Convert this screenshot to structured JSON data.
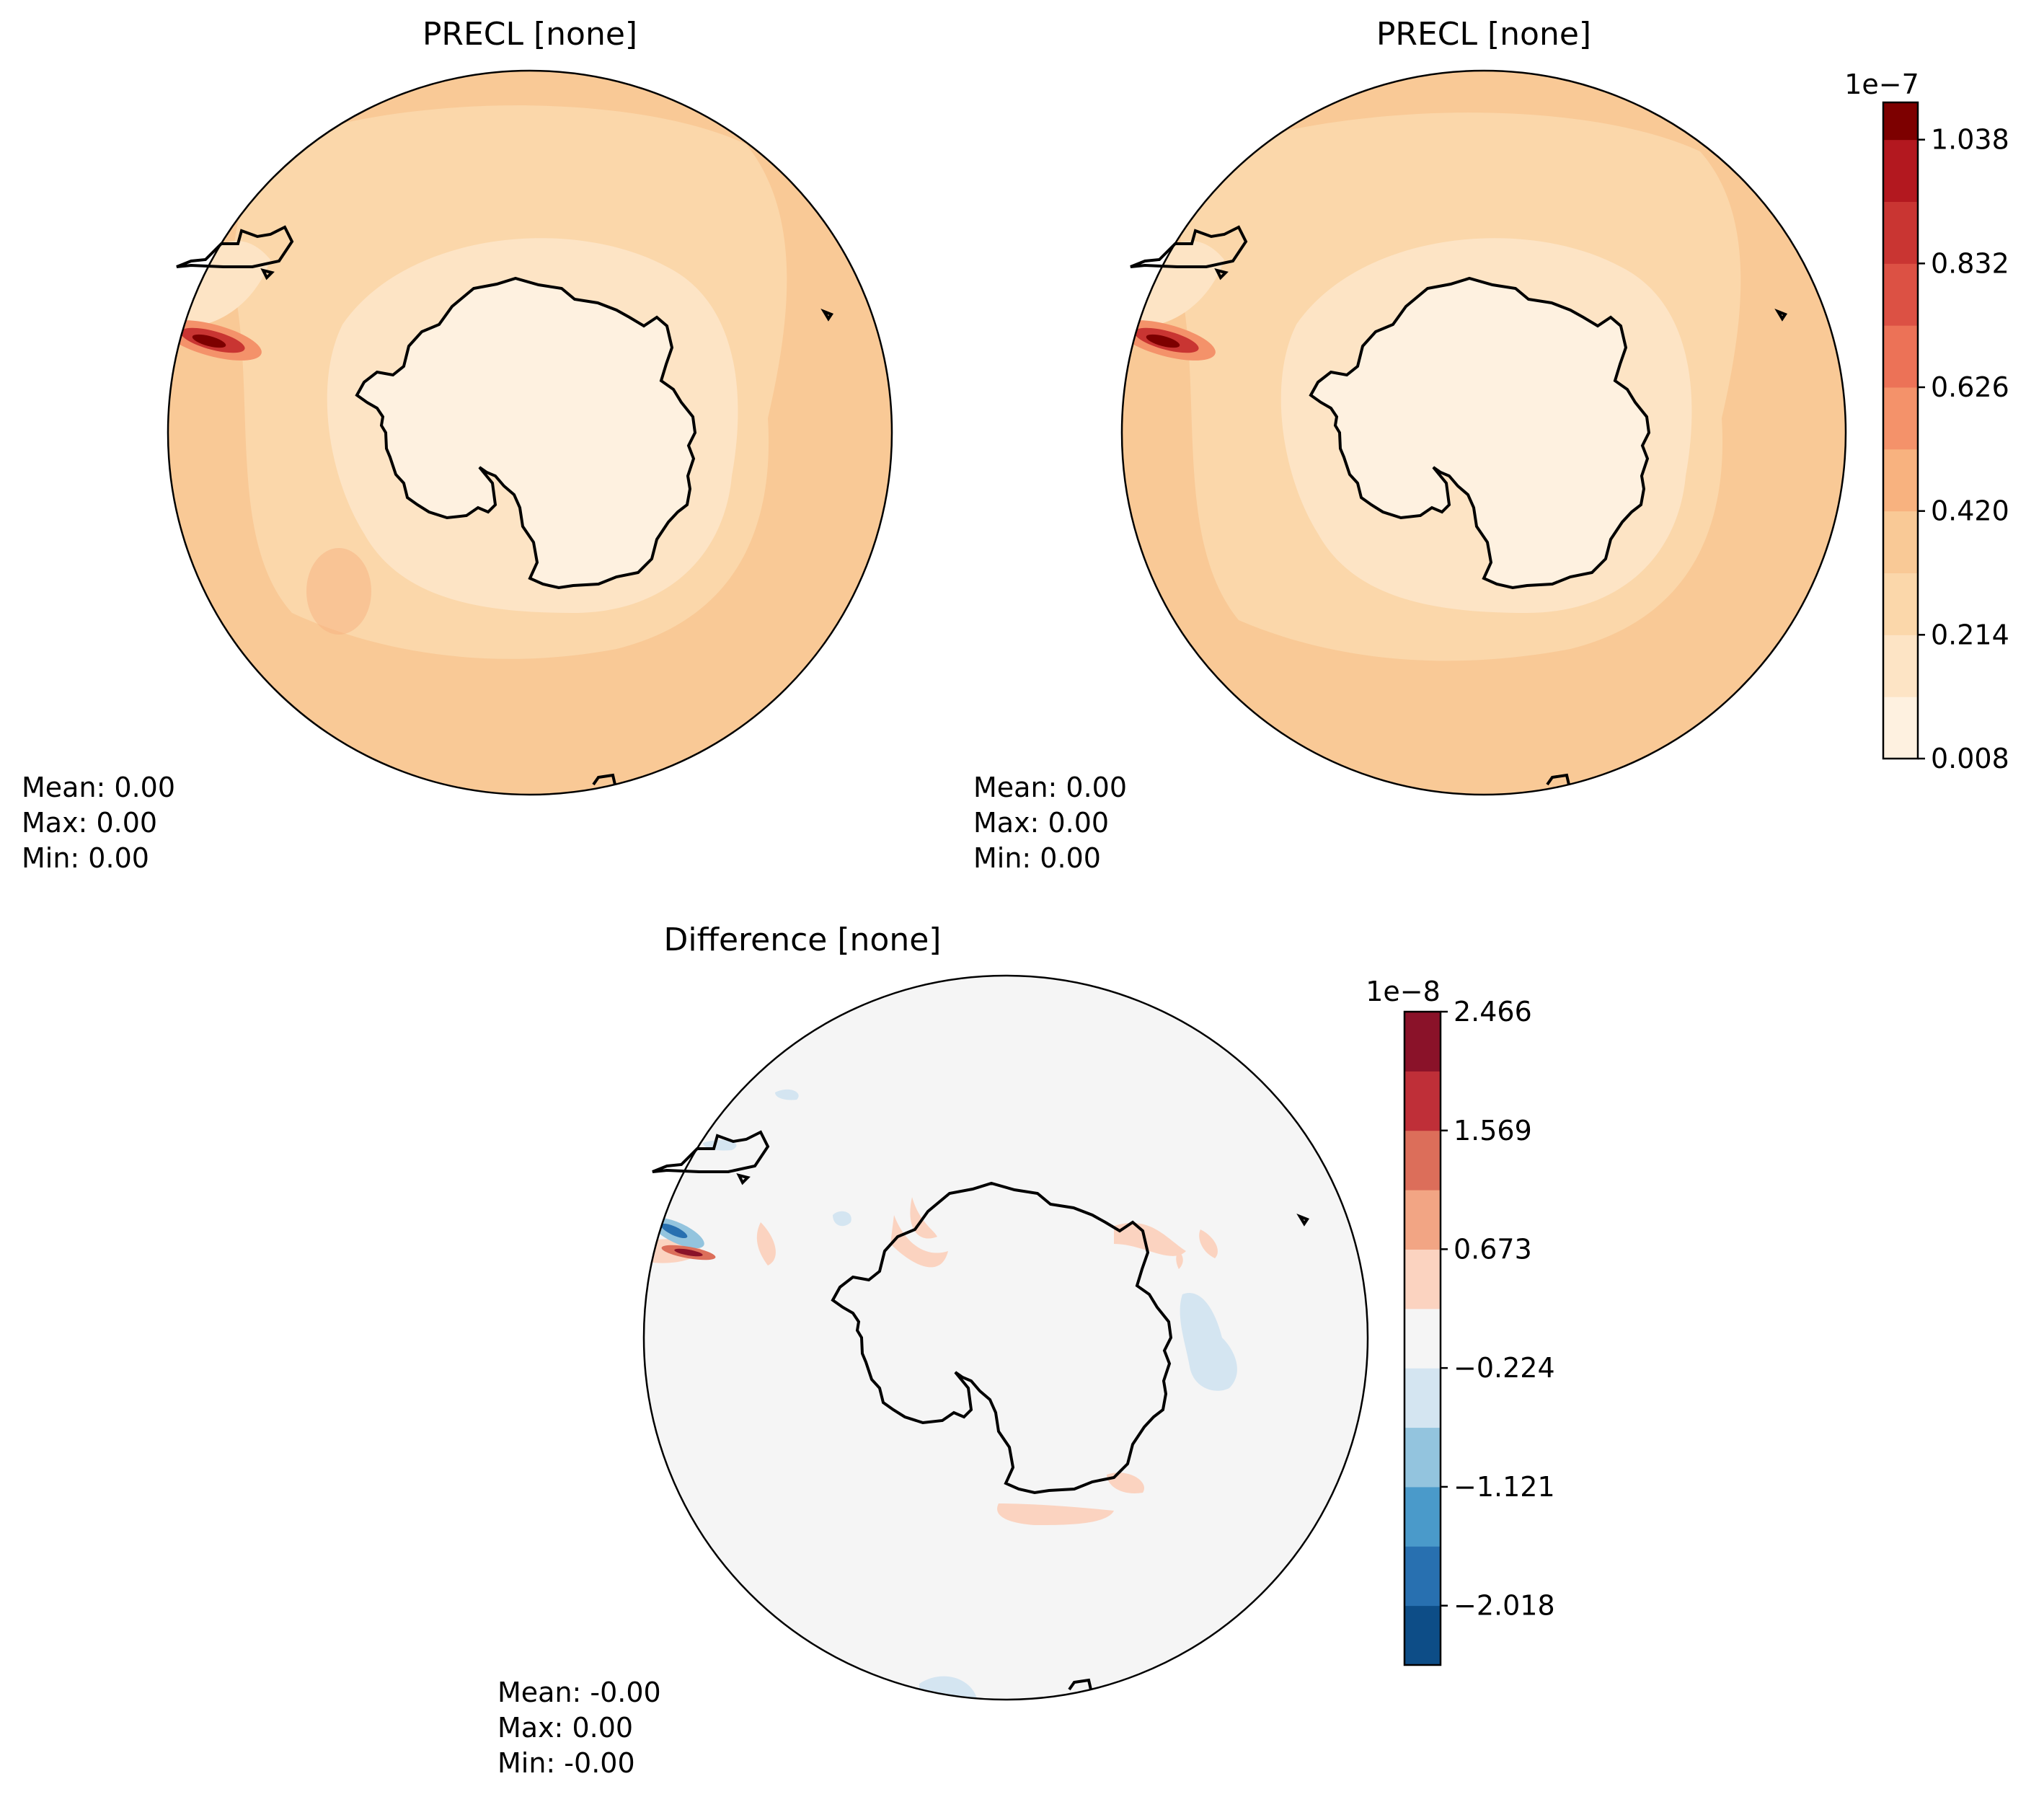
{
  "panels": [
    {
      "title": "PRECL [none]",
      "stats": {
        "mean": "Mean:  0.00",
        "max": "Max:  0.00",
        "min": "Min:  0.00"
      },
      "colors": {
        "ocean_outer": "#f9c996",
        "ocean_mid": "#fbd7aa",
        "coast_ring": "#fde4c5",
        "interior": "#fef1e0",
        "max_spot": "#b2182b"
      }
    },
    {
      "title": "PRECL [none]",
      "stats": {
        "mean": "Mean:  0.00",
        "max": "Max:  0.00",
        "min": "Min:  0.00"
      },
      "colors": {
        "ocean_outer": "#f9c996",
        "ocean_mid": "#fbd7aa",
        "coast_ring": "#fde4c5",
        "interior": "#fef1e0",
        "max_spot": "#b2182b"
      }
    },
    {
      "title": "Difference [none]",
      "stats": {
        "mean": "Mean: -0.00",
        "max": "Max:  0.00",
        "min": "Min: -0.00"
      },
      "colors": {
        "background": "#f5f5f5",
        "positive": "#fbd3c0",
        "negative": "#d4e5f1",
        "strong_negative": "#4393c3",
        "strong_positive": "#b2182b"
      }
    }
  ],
  "chart_data": [
    {
      "type": "heatmap",
      "projection": "south polar stereographic",
      "title": "PRECL [none]",
      "legend_placement": "right (shared colorbar with panel 2)"
    },
    {
      "type": "heatmap",
      "projection": "south polar stereographic",
      "title": "PRECL [none]",
      "colorbar": {
        "exponent": "1e−7",
        "tick_labels": [
          "0.008",
          "0.214",
          "0.420",
          "0.626",
          "0.832",
          "1.038"
        ],
        "ticks": [
          0.008,
          0.214,
          0.42,
          0.626,
          0.832,
          1.038
        ],
        "range": [
          0.008,
          1.1
        ],
        "levels": [
          0.008,
          0.111,
          0.214,
          0.317,
          0.42,
          0.523,
          0.626,
          0.729,
          0.832,
          0.935,
          1.038,
          1.1
        ],
        "colors": [
          "#fef1e0",
          "#fde4c5",
          "#fbd7aa",
          "#f9c996",
          "#f8b27f",
          "#f4926a",
          "#ec7257",
          "#dc5144",
          "#c93532",
          "#b3181f",
          "#7d0000"
        ]
      }
    },
    {
      "type": "heatmap",
      "projection": "south polar stereographic",
      "title": "Difference [none]",
      "colorbar": {
        "exponent": "1e−8",
        "tick_labels": [
          "−2.018",
          "−1.121",
          "−0.224",
          "0.673",
          "1.569",
          "2.466"
        ],
        "ticks": [
          -2.018,
          -1.121,
          -0.224,
          0.673,
          1.569,
          2.466
        ],
        "range": [
          -2.466,
          2.466
        ],
        "colors": [
          "#0d4d87",
          "#2870b0",
          "#4a9aca",
          "#93c4de",
          "#d4e5f1",
          "#f5f5f5",
          "#fbd3c0",
          "#f2a584",
          "#dc6e5a",
          "#bf2f38",
          "#8a1229"
        ]
      }
    }
  ]
}
